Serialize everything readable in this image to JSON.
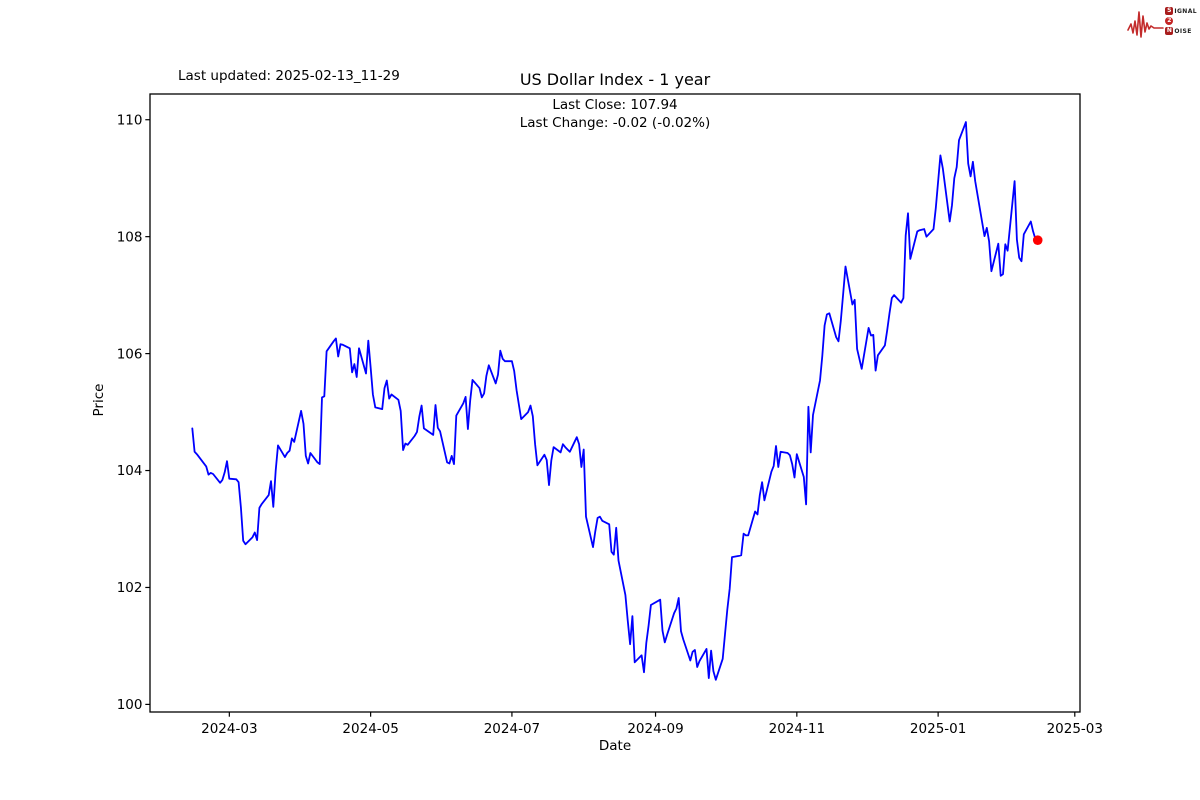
{
  "header": {
    "last_updated": "Last updated: 2025-02-13_11-29"
  },
  "brand": {
    "s": "S",
    "ignal": "IGNAL",
    "two": "2",
    "n": "N",
    "oise": "OISE"
  },
  "chart": {
    "title": "US Dollar Index - 1 year",
    "subtitle_line1": "Last Close: 107.94",
    "subtitle_line2": "Last Change: -0.02 (-0.02%)",
    "xlabel": "Date",
    "ylabel": "Price"
  },
  "chart_data": {
    "type": "line",
    "title": "US Dollar Index - 1 year",
    "last_close": "107.94",
    "last_change": "-0.02 (-0.02%)",
    "xlabel": "Date",
    "ylabel": "Price",
    "line_color": "#0000ff",
    "marker_color": "#ff0000",
    "axis_color": "#000000",
    "grid": false,
    "legend": false,
    "ylim": [
      99.87,
      110.44
    ],
    "yticks": [
      "100",
      "102",
      "104",
      "106",
      "108",
      "110"
    ],
    "xticks": [
      "2024-03",
      "2024-05",
      "2024-07",
      "2024-09",
      "2024-11",
      "2025-01",
      "2025-03"
    ],
    "series": [
      {
        "name": "US Dollar Index",
        "points": [
          [
            "2024-02-14",
            104.72
          ],
          [
            "2024-02-15",
            104.32
          ],
          [
            "2024-02-16",
            104.28
          ],
          [
            "2024-02-20",
            104.07
          ],
          [
            "2024-02-21",
            103.93
          ],
          [
            "2024-02-22",
            103.96
          ],
          [
            "2024-02-23",
            103.94
          ],
          [
            "2024-02-26",
            103.79
          ],
          [
            "2024-02-27",
            103.84
          ],
          [
            "2024-02-28",
            103.97
          ],
          [
            "2024-02-29",
            104.16
          ],
          [
            "2024-03-01",
            103.86
          ],
          [
            "2024-03-04",
            103.85
          ],
          [
            "2024-03-05",
            103.8
          ],
          [
            "2024-03-06",
            103.37
          ],
          [
            "2024-03-07",
            102.8
          ],
          [
            "2024-03-08",
            102.74
          ],
          [
            "2024-03-11",
            102.86
          ],
          [
            "2024-03-12",
            102.94
          ],
          [
            "2024-03-13",
            102.81
          ],
          [
            "2024-03-14",
            103.36
          ],
          [
            "2024-03-15",
            103.43
          ],
          [
            "2024-03-18",
            103.58
          ],
          [
            "2024-03-19",
            103.82
          ],
          [
            "2024-03-20",
            103.38
          ],
          [
            "2024-03-21",
            104.0
          ],
          [
            "2024-03-22",
            104.43
          ],
          [
            "2024-03-25",
            104.23
          ],
          [
            "2024-03-26",
            104.3
          ],
          [
            "2024-03-27",
            104.34
          ],
          [
            "2024-03-28",
            104.55
          ],
          [
            "2024-03-29",
            104.49
          ],
          [
            "2024-04-01",
            105.02
          ],
          [
            "2024-04-02",
            104.8
          ],
          [
            "2024-04-03",
            104.25
          ],
          [
            "2024-04-04",
            104.12
          ],
          [
            "2024-04-05",
            104.3
          ],
          [
            "2024-04-08",
            104.14
          ],
          [
            "2024-04-09",
            104.11
          ],
          [
            "2024-04-10",
            105.25
          ],
          [
            "2024-04-11",
            105.27
          ],
          [
            "2024-04-12",
            106.04
          ],
          [
            "2024-04-15",
            106.21
          ],
          [
            "2024-04-16",
            106.26
          ],
          [
            "2024-04-17",
            105.95
          ],
          [
            "2024-04-18",
            106.16
          ],
          [
            "2024-04-19",
            106.15
          ],
          [
            "2024-04-22",
            106.09
          ],
          [
            "2024-04-23",
            105.68
          ],
          [
            "2024-04-24",
            105.82
          ],
          [
            "2024-04-25",
            105.6
          ],
          [
            "2024-04-26",
            106.09
          ],
          [
            "2024-04-29",
            105.66
          ],
          [
            "2024-04-30",
            106.22
          ],
          [
            "2024-05-01",
            105.77
          ],
          [
            "2024-05-02",
            105.3
          ],
          [
            "2024-05-03",
            105.08
          ],
          [
            "2024-05-06",
            105.05
          ],
          [
            "2024-05-07",
            105.41
          ],
          [
            "2024-05-08",
            105.54
          ],
          [
            "2024-05-09",
            105.23
          ],
          [
            "2024-05-10",
            105.3
          ],
          [
            "2024-05-13",
            105.21
          ],
          [
            "2024-05-14",
            105.02
          ],
          [
            "2024-05-15",
            104.35
          ],
          [
            "2024-05-16",
            104.46
          ],
          [
            "2024-05-17",
            104.44
          ],
          [
            "2024-05-20",
            104.59
          ],
          [
            "2024-05-21",
            104.66
          ],
          [
            "2024-05-22",
            104.92
          ],
          [
            "2024-05-23",
            105.11
          ],
          [
            "2024-05-24",
            104.72
          ],
          [
            "2024-05-28",
            104.61
          ],
          [
            "2024-05-29",
            105.12
          ],
          [
            "2024-05-30",
            104.73
          ],
          [
            "2024-05-31",
            104.67
          ],
          [
            "2024-06-03",
            104.14
          ],
          [
            "2024-06-04",
            104.12
          ],
          [
            "2024-06-05",
            104.25
          ],
          [
            "2024-06-06",
            104.11
          ],
          [
            "2024-06-07",
            104.94
          ],
          [
            "2024-06-10",
            105.15
          ],
          [
            "2024-06-11",
            105.26
          ],
          [
            "2024-06-12",
            104.71
          ],
          [
            "2024-06-13",
            105.2
          ],
          [
            "2024-06-14",
            105.55
          ],
          [
            "2024-06-17",
            105.41
          ],
          [
            "2024-06-18",
            105.25
          ],
          [
            "2024-06-19",
            105.32
          ],
          [
            "2024-06-20",
            105.62
          ],
          [
            "2024-06-21",
            105.8
          ],
          [
            "2024-06-24",
            105.49
          ],
          [
            "2024-06-25",
            105.64
          ],
          [
            "2024-06-26",
            106.05
          ],
          [
            "2024-06-27",
            105.91
          ],
          [
            "2024-06-28",
            105.87
          ],
          [
            "2024-07-01",
            105.87
          ],
          [
            "2024-07-02",
            105.7
          ],
          [
            "2024-07-03",
            105.37
          ],
          [
            "2024-07-05",
            104.88
          ],
          [
            "2024-07-08",
            105.0
          ],
          [
            "2024-07-09",
            105.11
          ],
          [
            "2024-07-10",
            104.93
          ],
          [
            "2024-07-11",
            104.45
          ],
          [
            "2024-07-12",
            104.09
          ],
          [
            "2024-07-15",
            104.27
          ],
          [
            "2024-07-16",
            104.18
          ],
          [
            "2024-07-17",
            103.75
          ],
          [
            "2024-07-18",
            104.17
          ],
          [
            "2024-07-19",
            104.4
          ],
          [
            "2024-07-22",
            104.31
          ],
          [
            "2024-07-23",
            104.45
          ],
          [
            "2024-07-24",
            104.4
          ],
          [
            "2024-07-25",
            104.36
          ],
          [
            "2024-07-26",
            104.32
          ],
          [
            "2024-07-29",
            104.57
          ],
          [
            "2024-07-30",
            104.45
          ],
          [
            "2024-07-31",
            104.06
          ],
          [
            "2024-08-01",
            104.36
          ],
          [
            "2024-08-02",
            103.21
          ],
          [
            "2024-08-05",
            102.69
          ],
          [
            "2024-08-06",
            102.96
          ],
          [
            "2024-08-07",
            103.19
          ],
          [
            "2024-08-08",
            103.21
          ],
          [
            "2024-08-09",
            103.14
          ],
          [
            "2024-08-12",
            103.08
          ],
          [
            "2024-08-13",
            102.61
          ],
          [
            "2024-08-14",
            102.56
          ],
          [
            "2024-08-15",
            103.02
          ],
          [
            "2024-08-16",
            102.46
          ],
          [
            "2024-08-19",
            101.87
          ],
          [
            "2024-08-20",
            101.44
          ],
          [
            "2024-08-21",
            101.03
          ],
          [
            "2024-08-22",
            101.51
          ],
          [
            "2024-08-23",
            100.72
          ],
          [
            "2024-08-26",
            100.84
          ],
          [
            "2024-08-27",
            100.55
          ],
          [
            "2024-08-28",
            101.05
          ],
          [
            "2024-08-29",
            101.35
          ],
          [
            "2024-08-30",
            101.7
          ],
          [
            "2024-09-03",
            101.79
          ],
          [
            "2024-09-04",
            101.26
          ],
          [
            "2024-09-05",
            101.06
          ],
          [
            "2024-09-06",
            101.19
          ],
          [
            "2024-09-09",
            101.56
          ],
          [
            "2024-09-10",
            101.64
          ],
          [
            "2024-09-11",
            101.82
          ],
          [
            "2024-09-12",
            101.25
          ],
          [
            "2024-09-13",
            101.11
          ],
          [
            "2024-09-16",
            100.75
          ],
          [
            "2024-09-17",
            100.9
          ],
          [
            "2024-09-18",
            100.93
          ],
          [
            "2024-09-19",
            100.64
          ],
          [
            "2024-09-20",
            100.74
          ],
          [
            "2024-09-23",
            100.95
          ],
          [
            "2024-09-24",
            100.45
          ],
          [
            "2024-09-25",
            100.92
          ],
          [
            "2024-09-26",
            100.57
          ],
          [
            "2024-09-27",
            100.42
          ],
          [
            "2024-09-30",
            100.78
          ],
          [
            "2024-10-01",
            101.2
          ],
          [
            "2024-10-02",
            101.62
          ],
          [
            "2024-10-03",
            101.98
          ],
          [
            "2024-10-04",
            102.52
          ],
          [
            "2024-10-07",
            102.54
          ],
          [
            "2024-10-08",
            102.55
          ],
          [
            "2024-10-09",
            102.92
          ],
          [
            "2024-10-10",
            102.89
          ],
          [
            "2024-10-11",
            102.89
          ],
          [
            "2024-10-14",
            103.3
          ],
          [
            "2024-10-15",
            103.25
          ],
          [
            "2024-10-16",
            103.58
          ],
          [
            "2024-10-17",
            103.8
          ],
          [
            "2024-10-18",
            103.49
          ],
          [
            "2024-10-21",
            103.98
          ],
          [
            "2024-10-22",
            104.08
          ],
          [
            "2024-10-23",
            104.42
          ],
          [
            "2024-10-24",
            104.06
          ],
          [
            "2024-10-25",
            104.32
          ],
          [
            "2024-10-28",
            104.3
          ],
          [
            "2024-10-29",
            104.26
          ],
          [
            "2024-10-30",
            104.11
          ],
          [
            "2024-10-31",
            103.88
          ],
          [
            "2024-11-01",
            104.28
          ],
          [
            "2024-11-04",
            103.89
          ],
          [
            "2024-11-05",
            103.42
          ],
          [
            "2024-11-06",
            105.09
          ],
          [
            "2024-11-07",
            104.31
          ],
          [
            "2024-11-08",
            104.95
          ],
          [
            "2024-11-11",
            105.54
          ],
          [
            "2024-11-12",
            105.96
          ],
          [
            "2024-11-13",
            106.48
          ],
          [
            "2024-11-14",
            106.67
          ],
          [
            "2024-11-15",
            106.69
          ],
          [
            "2024-11-18",
            106.28
          ],
          [
            "2024-11-19",
            106.21
          ],
          [
            "2024-11-20",
            106.56
          ],
          [
            "2024-11-21",
            107.03
          ],
          [
            "2024-11-22",
            107.49
          ],
          [
            "2024-11-25",
            106.84
          ],
          [
            "2024-11-26",
            106.92
          ],
          [
            "2024-11-27",
            106.08
          ],
          [
            "2024-11-29",
            105.74
          ],
          [
            "2024-12-02",
            106.44
          ],
          [
            "2024-12-03",
            106.31
          ],
          [
            "2024-12-04",
            106.32
          ],
          [
            "2024-12-05",
            105.71
          ],
          [
            "2024-12-06",
            105.97
          ],
          [
            "2024-12-09",
            106.14
          ],
          [
            "2024-12-10",
            106.4
          ],
          [
            "2024-12-11",
            106.69
          ],
          [
            "2024-12-12",
            106.95
          ],
          [
            "2024-12-13",
            107.0
          ],
          [
            "2024-12-16",
            106.87
          ],
          [
            "2024-12-17",
            106.95
          ],
          [
            "2024-12-18",
            108.02
          ],
          [
            "2024-12-19",
            108.4
          ],
          [
            "2024-12-20",
            107.62
          ],
          [
            "2024-12-23",
            108.09
          ],
          [
            "2024-12-24",
            108.11
          ],
          [
            "2024-12-26",
            108.13
          ],
          [
            "2024-12-27",
            108.0
          ],
          [
            "2024-12-30",
            108.13
          ],
          [
            "2024-12-31",
            108.49
          ],
          [
            "2025-01-02",
            109.39
          ],
          [
            "2025-01-03",
            109.17
          ],
          [
            "2025-01-06",
            108.26
          ],
          [
            "2025-01-07",
            108.54
          ],
          [
            "2025-01-08",
            109.0
          ],
          [
            "2025-01-09",
            109.19
          ],
          [
            "2025-01-10",
            109.65
          ],
          [
            "2025-01-13",
            109.96
          ],
          [
            "2025-01-14",
            109.25
          ],
          [
            "2025-01-15",
            109.03
          ],
          [
            "2025-01-16",
            109.28
          ],
          [
            "2025-01-17",
            108.95
          ],
          [
            "2025-01-21",
            108.01
          ],
          [
            "2025-01-22",
            108.15
          ],
          [
            "2025-01-23",
            107.92
          ],
          [
            "2025-01-24",
            107.41
          ],
          [
            "2025-01-27",
            107.88
          ],
          [
            "2025-01-28",
            107.33
          ],
          [
            "2025-01-29",
            107.36
          ],
          [
            "2025-01-30",
            107.87
          ],
          [
            "2025-01-31",
            107.76
          ],
          [
            "2025-02-03",
            108.95
          ],
          [
            "2025-02-04",
            107.95
          ],
          [
            "2025-02-05",
            107.64
          ],
          [
            "2025-02-06",
            107.58
          ],
          [
            "2025-02-07",
            108.04
          ],
          [
            "2025-02-10",
            108.26
          ],
          [
            "2025-02-11",
            108.09
          ],
          [
            "2025-02-12",
            107.96
          ],
          [
            "2025-02-13",
            107.94
          ]
        ]
      }
    ]
  }
}
